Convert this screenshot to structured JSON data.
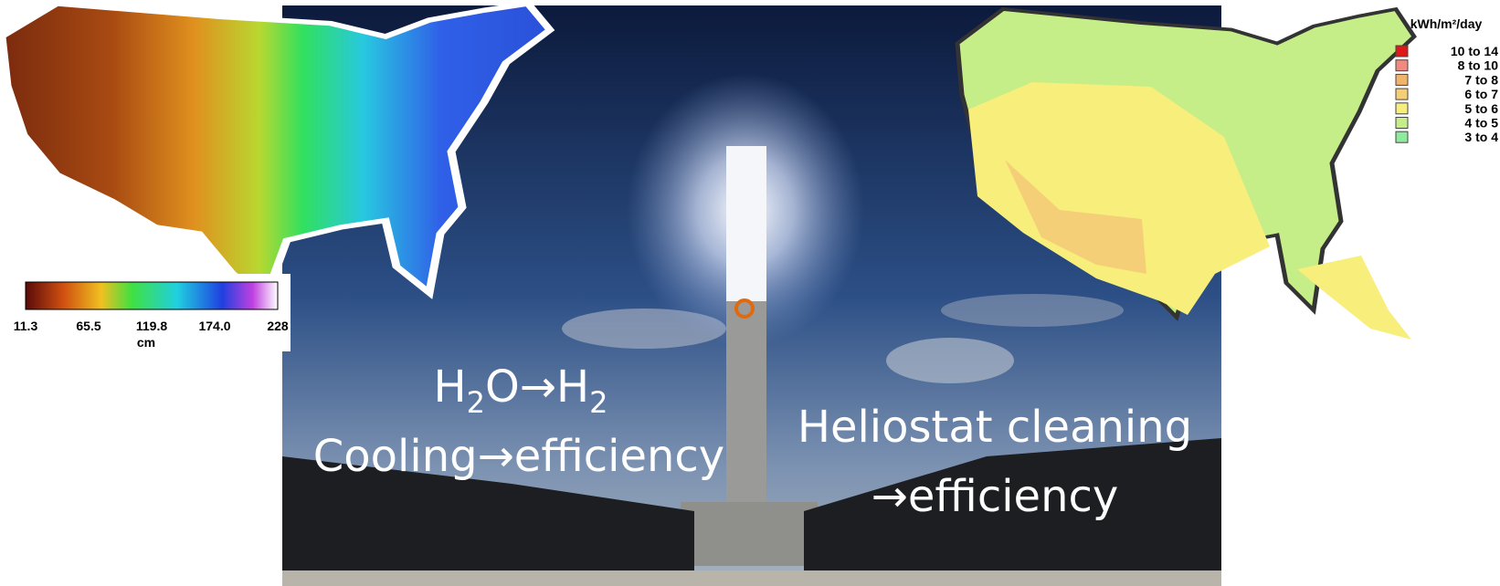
{
  "slide": {
    "left_text": {
      "line1": {
        "parts": [
          "H",
          "2",
          "O→H",
          "2"
        ]
      },
      "line2": "Cooling→efficiency"
    },
    "right_text": {
      "line1": "Heliostat cleaning",
      "line2": "→efficiency"
    },
    "precip_map": {
      "scale_labels": [
        "11.3",
        "65.5",
        "119.8",
        "174.0",
        "228"
      ],
      "unit": "cm"
    },
    "solar_map": {
      "legend_title": "kWh/m²/day",
      "legend": [
        {
          "label": "10 to 14",
          "color": "#e01818"
        },
        {
          "label": "8 to 10",
          "color": "#f08a80"
        },
        {
          "label": "7 to 8",
          "color": "#f2b46a"
        },
        {
          "label": "6 to 7",
          "color": "#f5cf78"
        },
        {
          "label": "5 to 6",
          "color": "#f7ee7c"
        },
        {
          "label": "4 to 5",
          "color": "#c6ee88"
        },
        {
          "label": "3 to 4",
          "color": "#8eea9c"
        }
      ]
    }
  }
}
